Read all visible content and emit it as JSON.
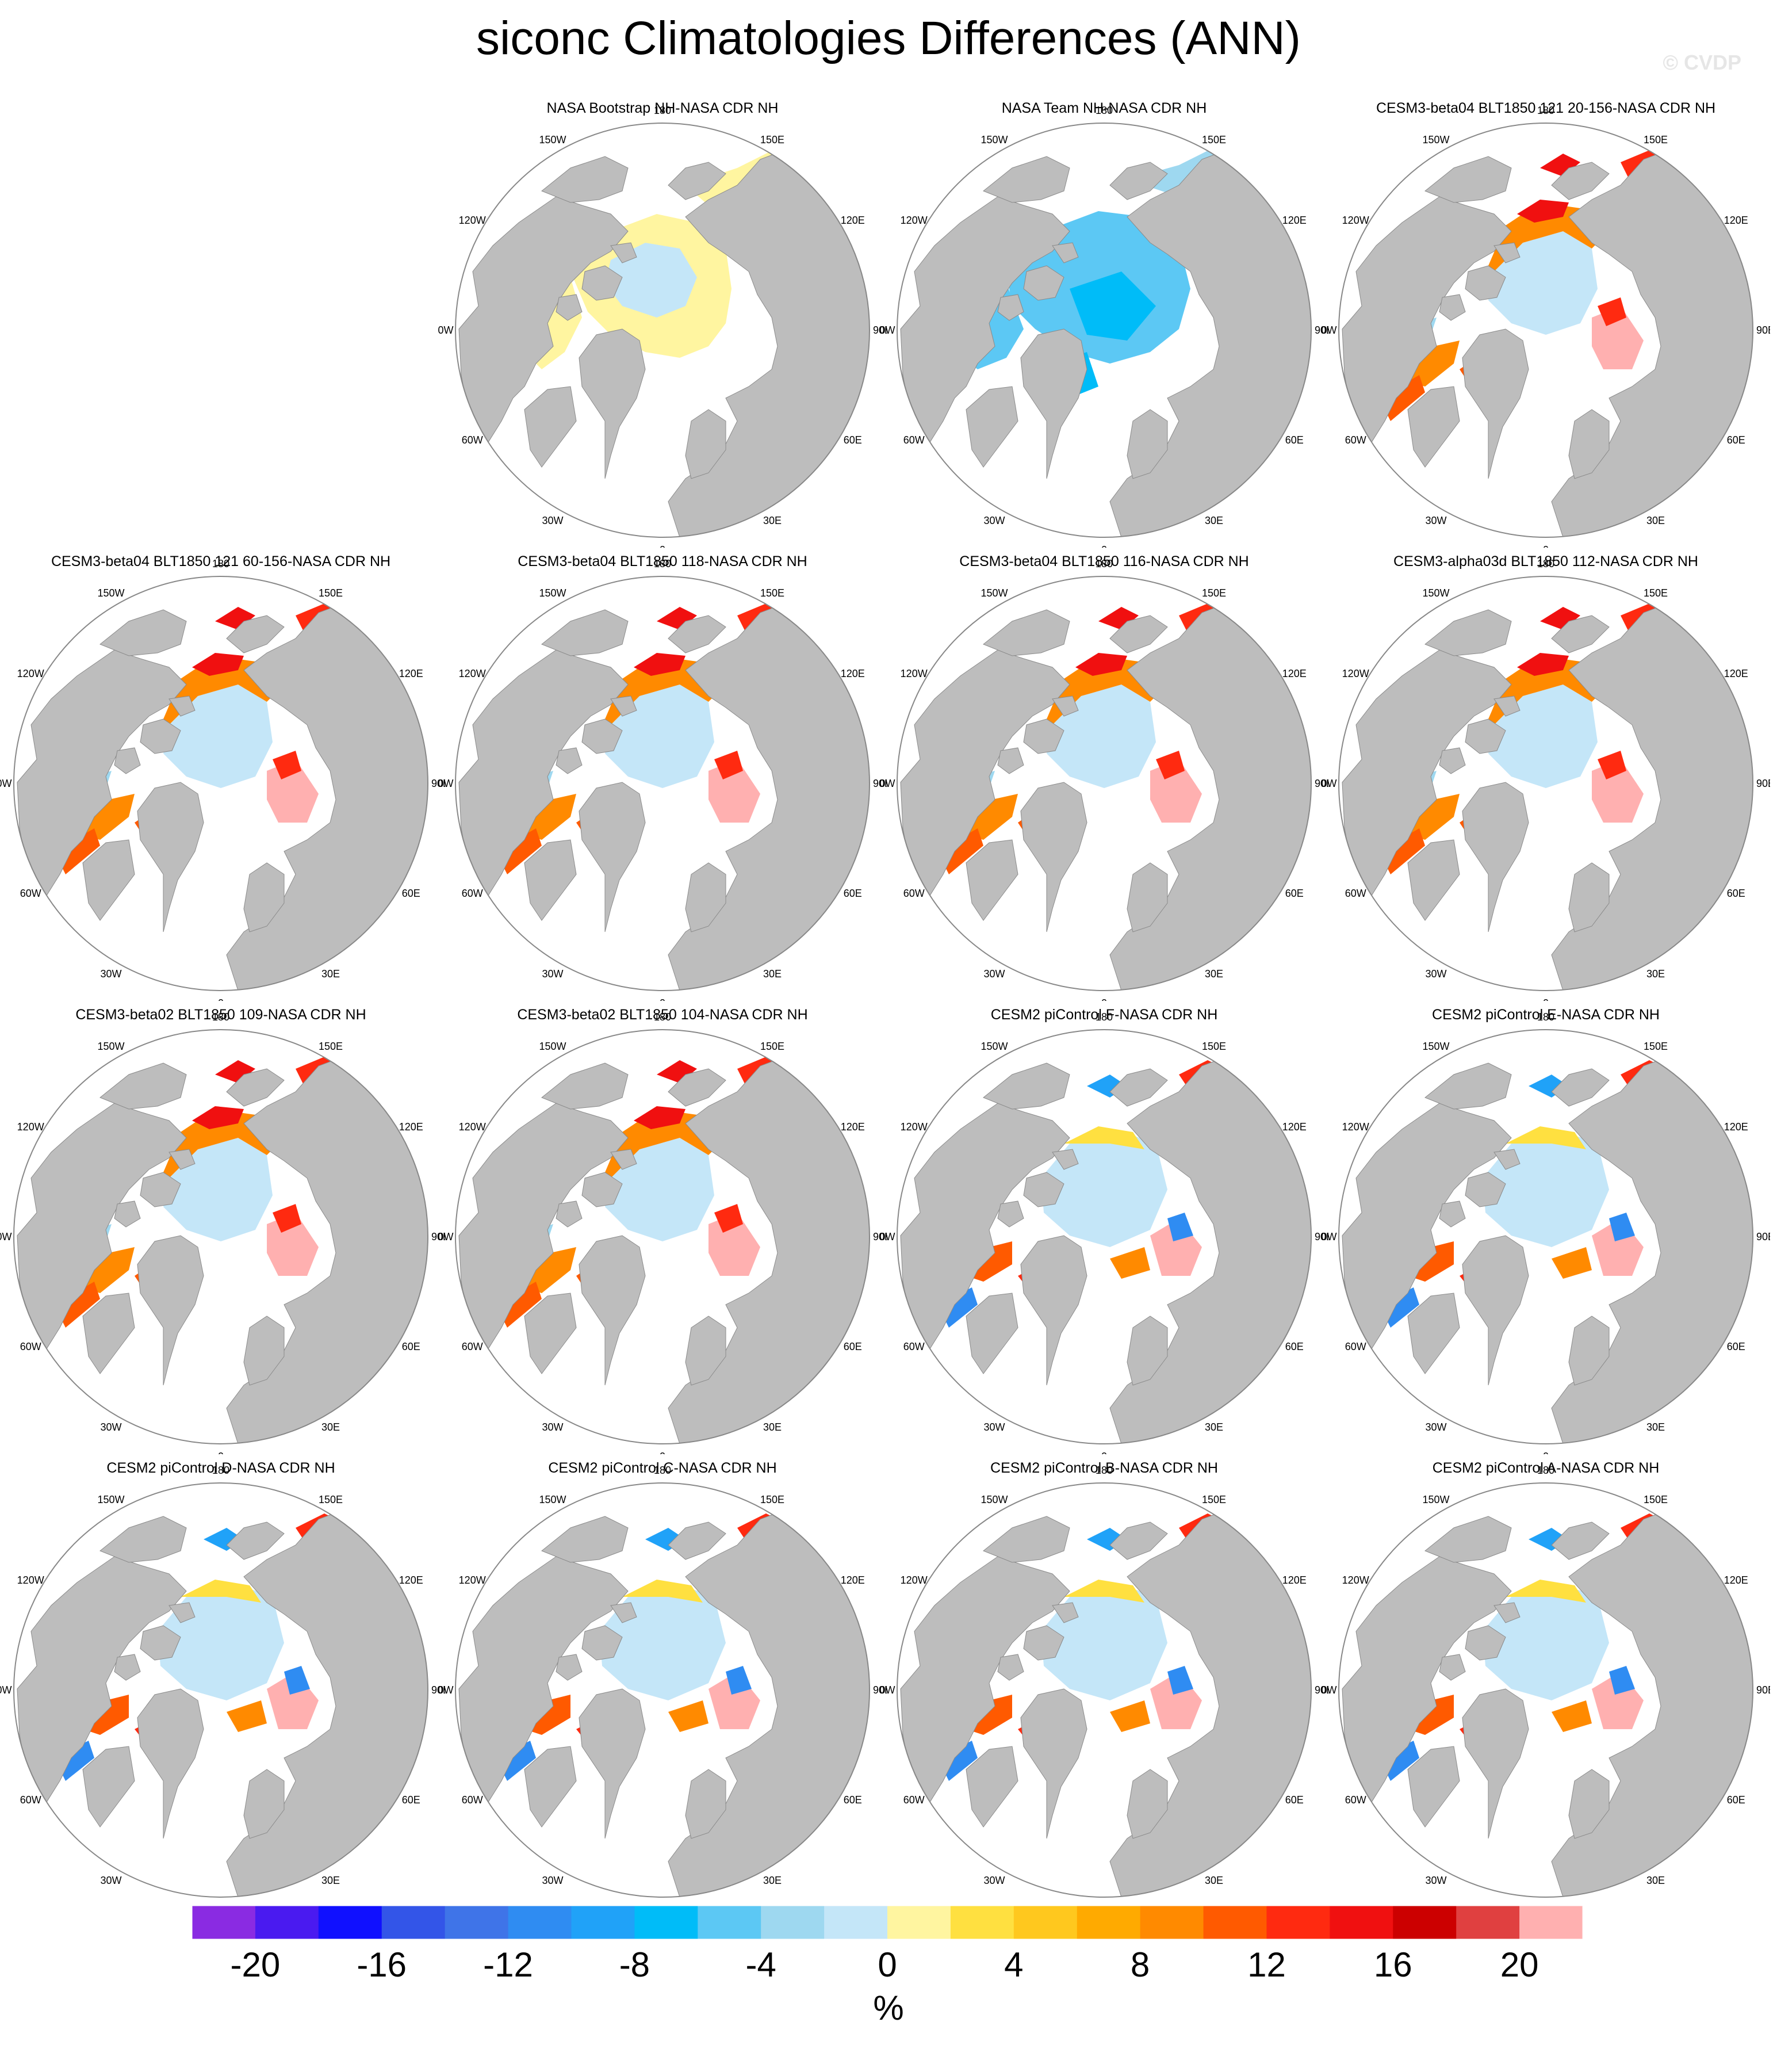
{
  "title": "siconc Climatologies Differences (ANN)",
  "watermark": "© CVDP",
  "map": {
    "projection": "north-polar-stereographic",
    "lon_labels": [
      "180",
      "150E",
      "120E",
      "90E",
      "60E",
      "30E",
      "0",
      "30W",
      "60W",
      "90W",
      "120W",
      "150W"
    ],
    "colors": {
      "land": "#bdbdbd",
      "ocean": "#ffffff",
      "outline": "#888888"
    }
  },
  "panels": [
    {
      "title": "NASA Bootstrap NH-NASA CDR NH",
      "pattern": "bootstrap"
    },
    {
      "title": "NASA Team NH-NASA CDR NH",
      "pattern": "team"
    },
    {
      "title": "CESM3-beta04 BLT1850 121 20-156-NASA CDR NH",
      "pattern": "cesm3"
    },
    {
      "title": "CESM3-beta04 BLT1850 121 60-156-NASA CDR NH",
      "pattern": "cesm3"
    },
    {
      "title": "CESM3-beta04 BLT1850 118-NASA CDR NH",
      "pattern": "cesm3"
    },
    {
      "title": "CESM3-beta04 BLT1850 116-NASA CDR NH",
      "pattern": "cesm3"
    },
    {
      "title": "CESM3-alpha03d BLT1850 112-NASA CDR NH",
      "pattern": "cesm3"
    },
    {
      "title": "CESM3-beta02 BLT1850 109-NASA CDR NH",
      "pattern": "cesm3"
    },
    {
      "title": "CESM3-beta02 BLT1850 104-NASA CDR NH",
      "pattern": "cesm3"
    },
    {
      "title": "CESM2 piControl F-NASA CDR NH",
      "pattern": "cesm2"
    },
    {
      "title": "CESM2 piControl E-NASA CDR NH",
      "pattern": "cesm2"
    },
    {
      "title": "CESM2 piControl D-NASA CDR NH",
      "pattern": "cesm2"
    },
    {
      "title": "CESM2 piControl C-NASA CDR NH",
      "pattern": "cesm2"
    },
    {
      "title": "CESM2 piControl B-NASA CDR NH",
      "pattern": "cesm2"
    },
    {
      "title": "CESM2 piControl A-NASA CDR NH",
      "pattern": "cesm2"
    }
  ],
  "colorbar": {
    "units": "%",
    "tick_labels": [
      "-20",
      "-16",
      "-12",
      "-8",
      "-4",
      "0",
      "4",
      "8",
      "12",
      "16",
      "20"
    ],
    "tick_values": [
      -20,
      -16,
      -12,
      -8,
      -4,
      0,
      4,
      8,
      12,
      16,
      20
    ],
    "colors": [
      "#8a2be2",
      "#4a1af0",
      "#1010ff",
      "#3355e8",
      "#3f74e8",
      "#2f8cf2",
      "#20a2f8",
      "#00bcf8",
      "#5cc8f4",
      "#9ed8f0",
      "#c4e6f8",
      "#fff5a0",
      "#ffe040",
      "#ffc81e",
      "#ffaa00",
      "#ff8a00",
      "#ff5a00",
      "#ff2a10",
      "#f01010",
      "#cc0000",
      "#e04040",
      "#ffb0b0"
    ]
  }
}
